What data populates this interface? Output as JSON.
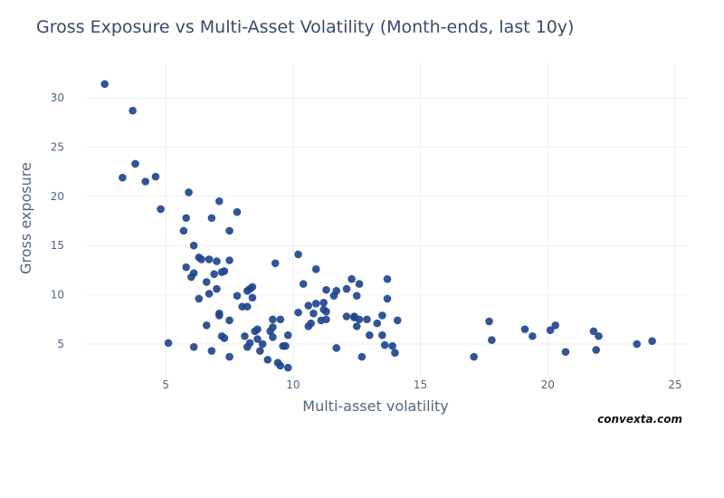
{
  "chart_data": {
    "type": "scatter",
    "title": "Gross Exposure vs Multi-Asset Volatility (Month-ends, last 10y)",
    "xlabel": "Multi-asset volatility",
    "ylabel": "Gross exposure",
    "xlim": [
      1.9,
      25.5
    ],
    "ylim": [
      1.5,
      33.5
    ],
    "xticks": [
      5,
      10,
      15,
      20,
      25
    ],
    "yticks": [
      5,
      10,
      15,
      20,
      25,
      30
    ],
    "grid": true,
    "marker_color": "#1f4690",
    "points": [
      [
        2.6,
        31.4
      ],
      [
        3.7,
        28.7
      ],
      [
        3.3,
        21.9
      ],
      [
        3.8,
        23.3
      ],
      [
        4.2,
        21.5
      ],
      [
        4.6,
        22.0
      ],
      [
        4.8,
        18.7
      ],
      [
        5.1,
        5.1
      ],
      [
        5.7,
        16.5
      ],
      [
        5.8,
        17.8
      ],
      [
        5.8,
        12.8
      ],
      [
        5.9,
        20.4
      ],
      [
        6.0,
        11.8
      ],
      [
        6.1,
        4.7
      ],
      [
        6.1,
        15.0
      ],
      [
        6.1,
        12.2
      ],
      [
        6.3,
        13.8
      ],
      [
        6.3,
        9.6
      ],
      [
        6.4,
        13.6
      ],
      [
        6.6,
        11.3
      ],
      [
        6.6,
        6.9
      ],
      [
        6.7,
        13.6
      ],
      [
        6.7,
        10.1
      ],
      [
        6.8,
        17.8
      ],
      [
        6.8,
        4.3
      ],
      [
        6.9,
        12.1
      ],
      [
        7.0,
        13.4
      ],
      [
        7.0,
        10.6
      ],
      [
        7.1,
        19.5
      ],
      [
        7.1,
        7.9
      ],
      [
        7.1,
        8.1
      ],
      [
        7.2,
        12.3
      ],
      [
        7.2,
        5.8
      ],
      [
        7.3,
        12.4
      ],
      [
        7.3,
        5.6
      ],
      [
        7.5,
        16.5
      ],
      [
        7.5,
        13.5
      ],
      [
        7.5,
        7.4
      ],
      [
        7.5,
        3.7
      ],
      [
        7.8,
        18.4
      ],
      [
        7.8,
        9.9
      ],
      [
        8.0,
        8.8
      ],
      [
        8.1,
        5.8
      ],
      [
        8.2,
        10.4
      ],
      [
        8.2,
        8.8
      ],
      [
        8.2,
        4.7
      ],
      [
        8.3,
        5.1
      ],
      [
        8.3,
        10.6
      ],
      [
        8.4,
        10.8
      ],
      [
        8.4,
        9.7
      ],
      [
        8.5,
        6.3
      ],
      [
        8.6,
        6.5
      ],
      [
        8.6,
        5.5
      ],
      [
        8.7,
        4.3
      ],
      [
        8.8,
        5.0
      ],
      [
        9.0,
        3.4
      ],
      [
        9.1,
        6.3
      ],
      [
        9.2,
        7.5
      ],
      [
        9.2,
        6.7
      ],
      [
        9.2,
        5.7
      ],
      [
        9.3,
        13.2
      ],
      [
        9.4,
        3.1
      ],
      [
        9.5,
        7.5
      ],
      [
        9.5,
        2.8
      ],
      [
        9.6,
        4.8
      ],
      [
        9.7,
        4.8
      ],
      [
        9.8,
        5.9
      ],
      [
        9.8,
        2.6
      ],
      [
        10.2,
        14.1
      ],
      [
        10.2,
        8.2
      ],
      [
        10.4,
        11.1
      ],
      [
        10.6,
        8.9
      ],
      [
        10.6,
        6.8
      ],
      [
        10.7,
        7.1
      ],
      [
        10.8,
        8.1
      ],
      [
        10.9,
        12.6
      ],
      [
        10.9,
        9.1
      ],
      [
        11.1,
        7.4
      ],
      [
        11.2,
        9.2
      ],
      [
        11.2,
        8.5
      ],
      [
        11.3,
        10.5
      ],
      [
        11.3,
        8.3
      ],
      [
        11.3,
        7.5
      ],
      [
        11.6,
        9.9
      ],
      [
        11.7,
        10.4
      ],
      [
        11.7,
        4.6
      ],
      [
        12.1,
        10.6
      ],
      [
        12.1,
        7.8
      ],
      [
        12.3,
        11.6
      ],
      [
        12.4,
        7.8
      ],
      [
        12.4,
        7.7
      ],
      [
        12.5,
        9.9
      ],
      [
        12.5,
        6.8
      ],
      [
        12.6,
        11.1
      ],
      [
        12.6,
        7.5
      ],
      [
        12.7,
        3.7
      ],
      [
        12.9,
        7.5
      ],
      [
        13.0,
        5.9
      ],
      [
        13.3,
        7.1
      ],
      [
        13.5,
        5.9
      ],
      [
        13.5,
        7.9
      ],
      [
        13.6,
        4.9
      ],
      [
        13.7,
        11.6
      ],
      [
        13.7,
        9.6
      ],
      [
        13.9,
        4.8
      ],
      [
        14.0,
        4.1
      ],
      [
        14.1,
        7.4
      ],
      [
        17.1,
        3.7
      ],
      [
        17.7,
        7.3
      ],
      [
        17.8,
        5.4
      ],
      [
        19.1,
        6.5
      ],
      [
        19.4,
        5.8
      ],
      [
        20.1,
        6.4
      ],
      [
        20.3,
        6.9
      ],
      [
        20.7,
        4.2
      ],
      [
        21.8,
        6.3
      ],
      [
        21.9,
        4.4
      ],
      [
        22.0,
        5.8
      ],
      [
        23.5,
        5.0
      ],
      [
        24.1,
        5.3
      ]
    ]
  },
  "watermark": "convexta.com"
}
